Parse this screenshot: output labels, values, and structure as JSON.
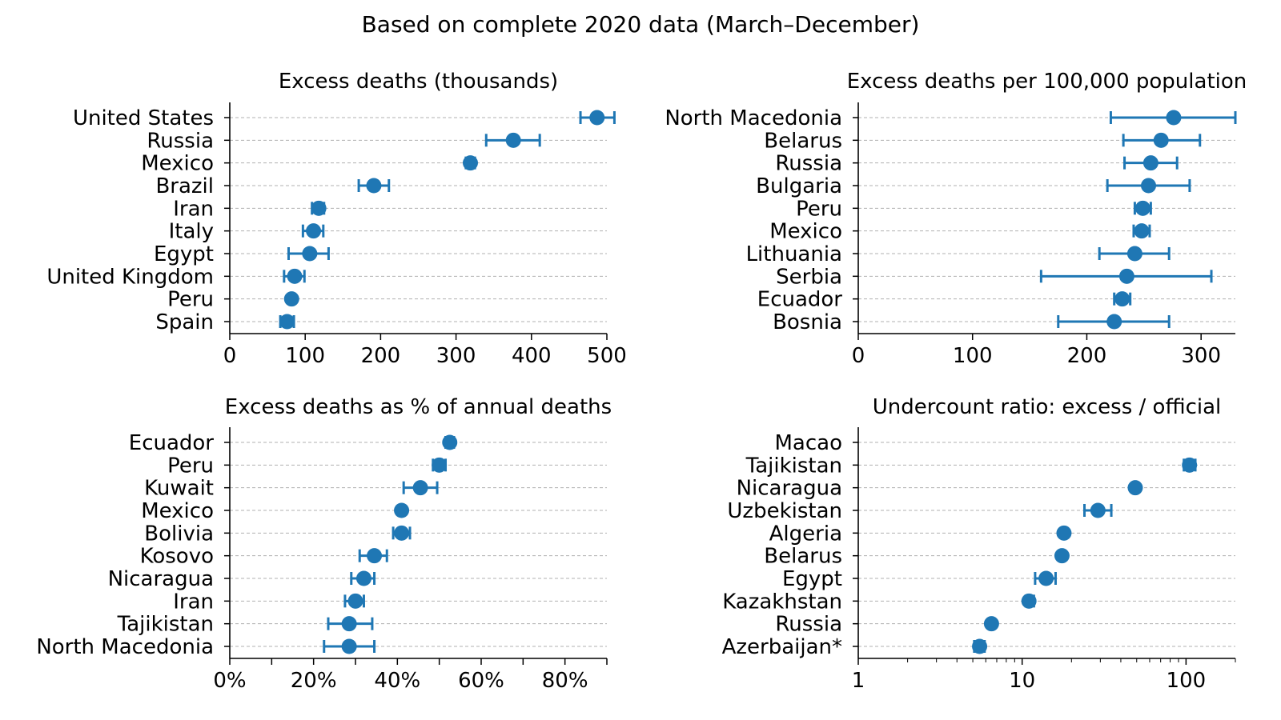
{
  "figure": {
    "suptitle": "Based on complete 2020 data (March–December)"
  },
  "colors": {
    "series": "#1f77b4",
    "grid": "#b0b0b0",
    "axis": "#000000"
  },
  "chart_data": [
    {
      "type": "scatter",
      "title": "Excess deaths (thousands)",
      "xscale": "linear",
      "xlim": [
        0,
        500
      ],
      "xticks": [
        0,
        100,
        200,
        300,
        400,
        500
      ],
      "xtick_labels": [
        "0",
        "100",
        "200",
        "300",
        "400",
        "500"
      ],
      "categories": [
        "United States",
        "Russia",
        "Mexico",
        "Brazil",
        "Iran",
        "Italy",
        "Egypt",
        "United Kingdom",
        "Peru",
        "Spain"
      ],
      "values": [
        487,
        376,
        319,
        191,
        118,
        111,
        106,
        86,
        82,
        76
      ],
      "lower": [
        465,
        340,
        313,
        171,
        109,
        97,
        78,
        72,
        80,
        67
      ],
      "upper": [
        510,
        411,
        325,
        211,
        125,
        124,
        131,
        99,
        84,
        85
      ],
      "grid": "dashed horizontal lines per category"
    },
    {
      "type": "scatter",
      "title": "Excess deaths per 100,000 population",
      "xscale": "linear",
      "xlim": [
        0,
        330
      ],
      "xticks": [
        0,
        100,
        200,
        300
      ],
      "xtick_labels": [
        "0",
        "100",
        "200",
        "300"
      ],
      "categories": [
        "North Macedonia",
        "Belarus",
        "Russia",
        "Bulgaria",
        "Peru",
        "Mexico",
        "Lithuania",
        "Serbia",
        "Ecuador",
        "Bosnia"
      ],
      "values": [
        276,
        265,
        256,
        254,
        249,
        248,
        242,
        235,
        231,
        224
      ],
      "lower": [
        221,
        232,
        233,
        218,
        242,
        241,
        211,
        160,
        224,
        175
      ],
      "upper": [
        330,
        299,
        279,
        290,
        256,
        255,
        272,
        309,
        238,
        272
      ],
      "grid": "dashed horizontal lines per category"
    },
    {
      "type": "scatter",
      "title": "Excess deaths as % of annual deaths",
      "xscale": "linear",
      "xlim": [
        0,
        90
      ],
      "xticks": [
        0,
        20,
        40,
        60,
        80
      ],
      "xtick_labels": [
        "0%",
        "20%",
        "40%",
        "60%",
        "80%"
      ],
      "minor_xticks": [
        10,
        30,
        50,
        70,
        90
      ],
      "categories": [
        "Ecuador",
        "Peru",
        "Kuwait",
        "Mexico",
        "Bolivia",
        "Kosovo",
        "Nicaragua",
        "Iran",
        "Tajikistan",
        "North Macedonia"
      ],
      "values": [
        52.5,
        50,
        45.5,
        41,
        41,
        34.5,
        32,
        30,
        28.5,
        28.5
      ],
      "lower": [
        51.5,
        48.5,
        41.5,
        40.5,
        39,
        31,
        29,
        27.5,
        23.5,
        22.5
      ],
      "upper": [
        53.5,
        51.5,
        49.5,
        41.5,
        43,
        37.5,
        34.5,
        32,
        34,
        34.5
      ],
      "grid": "dashed horizontal lines per category"
    },
    {
      "type": "scatter",
      "title": "Undercount ratio: excess / official",
      "xscale": "log",
      "xlim": [
        1,
        200
      ],
      "xticks": [
        1,
        10,
        100
      ],
      "xtick_labels": [
        "1",
        "10",
        "100"
      ],
      "categories": [
        "Macao",
        "Tajikistan",
        "Nicaragua",
        "Uzbekistan",
        "Algeria",
        "Belarus",
        "Egypt",
        "Kazakhstan",
        "Russia",
        "Azerbaijan*"
      ],
      "values": [
        null,
        105,
        49,
        29,
        18,
        17.5,
        14,
        11,
        6.5,
        5.5
      ],
      "lower": [
        null,
        97,
        49,
        24,
        18,
        17.5,
        12,
        10.5,
        6.5,
        5.1
      ],
      "upper": [
        null,
        114,
        49,
        35,
        18,
        17.5,
        16,
        11.8,
        6.5,
        5.9
      ],
      "grid": "dashed horizontal lines per category"
    }
  ]
}
